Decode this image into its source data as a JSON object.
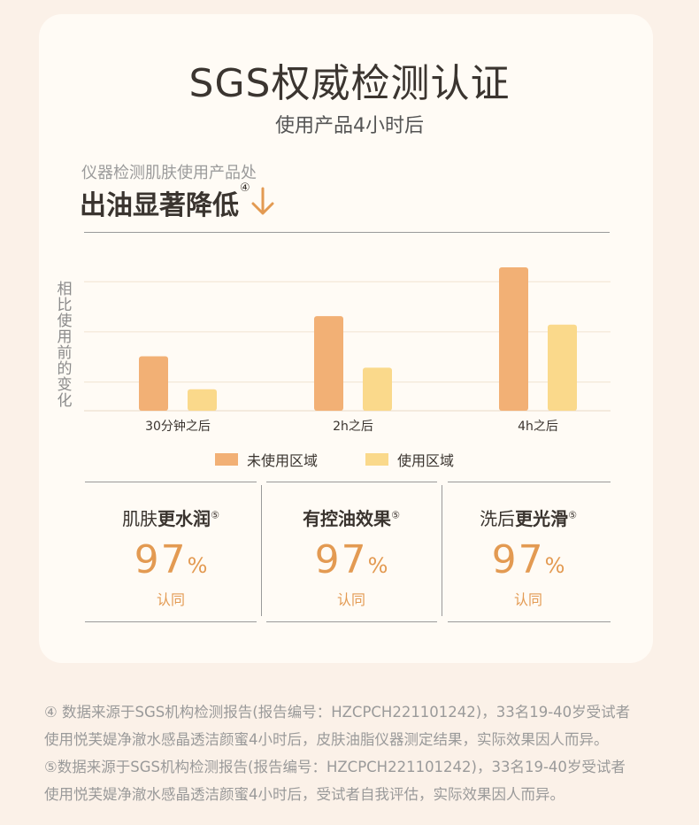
{
  "header": {
    "title": "SGS权威检测认证",
    "subtitle": "使用产品4小时后"
  },
  "section": {
    "caption": "仪器检测肌肤使用产品处",
    "headline": "出油显著降低",
    "headline_mark": "④"
  },
  "chart_data": {
    "type": "bar",
    "title": "",
    "xlabel": "",
    "ylabel": "相比使用前的变化",
    "categories": [
      "30分钟之后",
      "2h之后",
      "4h之后"
    ],
    "series": [
      {
        "name": "未使用区域",
        "color": "#f2b075",
        "values": [
          0.38,
          0.66,
          1.0
        ]
      },
      {
        "name": "使用区域",
        "color": "#fad98b",
        "values": [
          0.15,
          0.3,
          0.6
        ]
      }
    ],
    "ylim": [
      0,
      1
    ],
    "grid": true,
    "legend_position": "bottom"
  },
  "stats": [
    {
      "prefix": "肌肤",
      "bold": "更水润",
      "mark": "⑤",
      "value": "97",
      "unit": "%",
      "note": "认同"
    },
    {
      "prefix": "",
      "bold": "有控油效果",
      "mark": "⑤",
      "value": "97",
      "unit": "%",
      "note": "认同"
    },
    {
      "prefix": "洗后",
      "bold": "更光滑",
      "mark": "⑤",
      "value": "97",
      "unit": "%",
      "note": "认同"
    }
  ],
  "footnotes": [
    "④ 数据来源于SGS机构检测报告(报告编号：HZCPCH221101242)，33名19-40岁受试者",
    "使用悦芙媞净澈水感晶透洁颜蜜4小时后，皮肤油脂仪器测定结果，实际效果因人而异。",
    "⑤数据来源于SGS机构检测报告(报告编号：HZCPCH221101242)，33名19-40岁受试者",
    "使用悦芙媞净澈水感晶透洁颜蜜4小时后，受试者自我评估，实际效果因人而异。"
  ]
}
